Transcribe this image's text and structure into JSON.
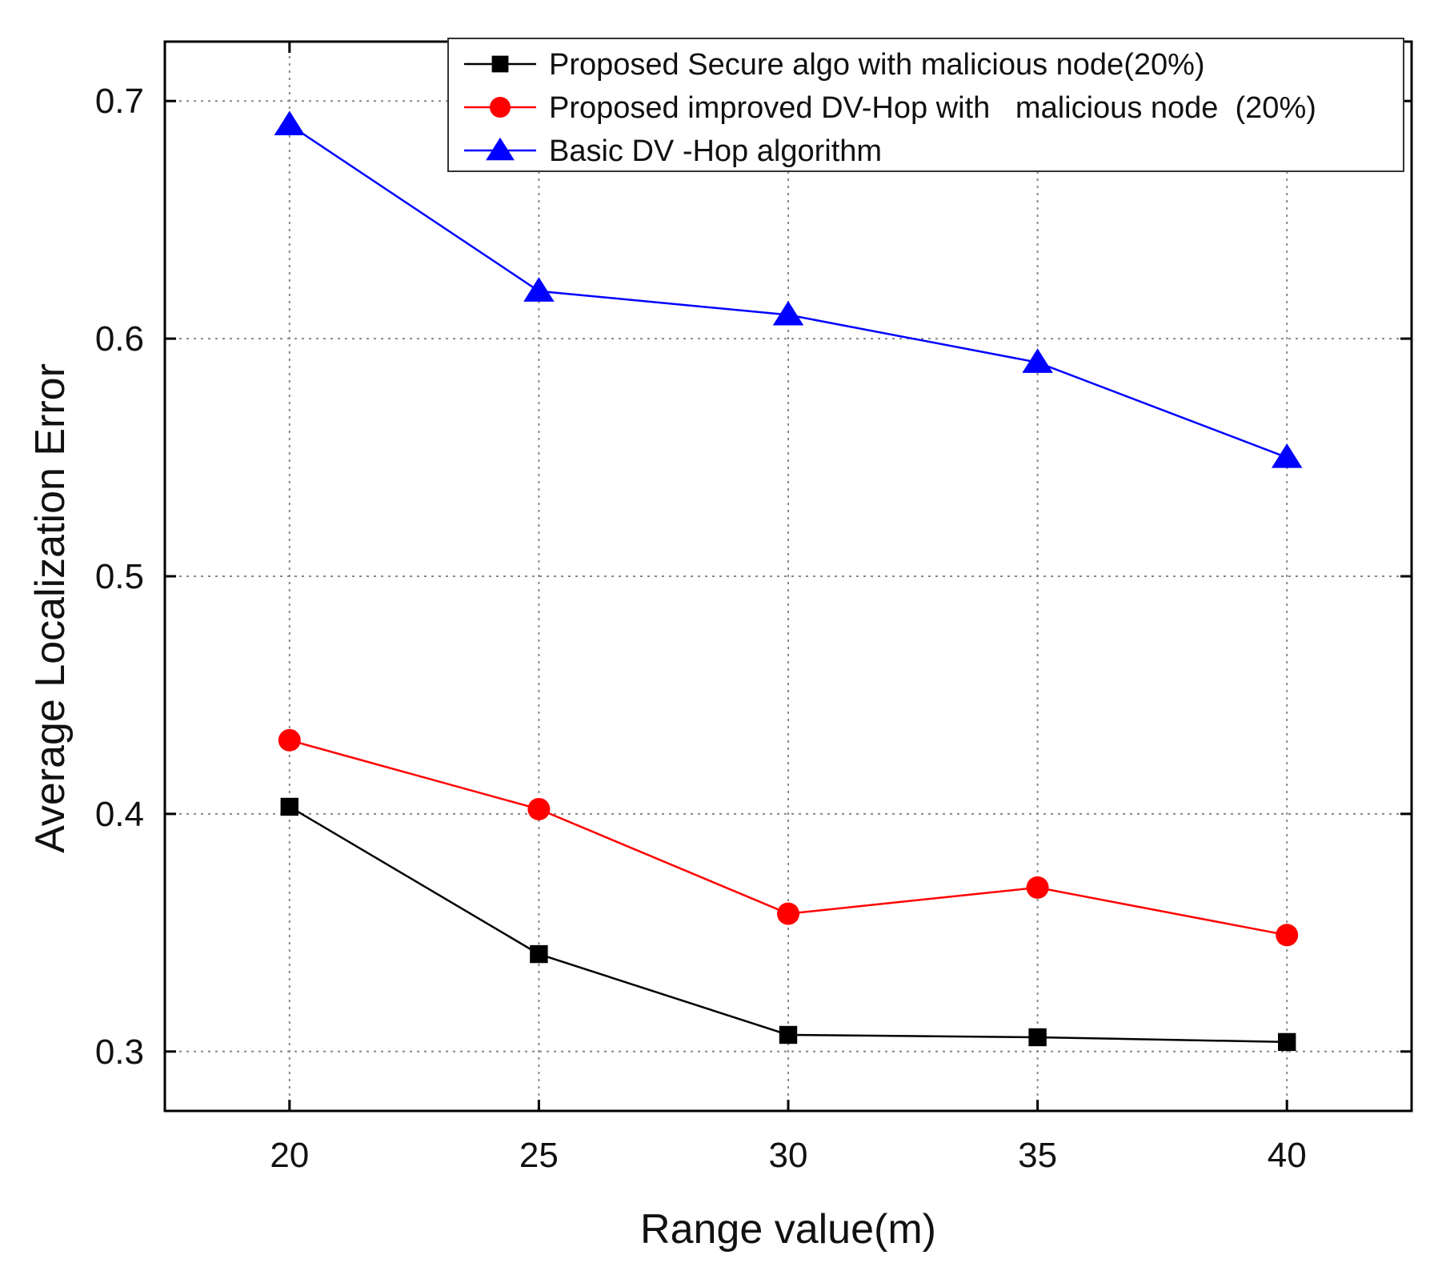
{
  "chart_data": {
    "type": "line",
    "title": "",
    "xlabel": "Range value(m)",
    "ylabel": "Average Localization Error",
    "x": [
      20,
      25,
      30,
      35,
      40
    ],
    "xticks": [
      "20",
      "25",
      "30",
      "35",
      "40"
    ],
    "yticks": [
      "0.3",
      "0.4",
      "0.5",
      "0.6",
      "0.7"
    ],
    "ytick_values": [
      0.3,
      0.4,
      0.5,
      0.6,
      0.7
    ],
    "xlim": [
      17.5,
      42.5
    ],
    "ylim": [
      0.275,
      0.725
    ],
    "grid": true,
    "legend_position": "top-right",
    "series": [
      {
        "name": "Proposed Secure algo with malicious node(20%)",
        "color": "#000000",
        "marker": "square",
        "values": [
          0.403,
          0.341,
          0.307,
          0.306,
          0.304
        ]
      },
      {
        "name": "Proposed improved DV-Hop with   malicious node  (20%)",
        "color": "#ff0000",
        "marker": "circle",
        "values": [
          0.431,
          0.402,
          0.358,
          0.369,
          0.349
        ]
      },
      {
        "name": "Basic DV -Hop algorithm",
        "color": "#0000ff",
        "marker": "triangle",
        "values": [
          0.69,
          0.62,
          0.61,
          0.59,
          0.55
        ]
      }
    ]
  }
}
